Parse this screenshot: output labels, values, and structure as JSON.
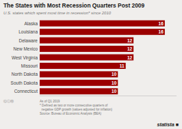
{
  "chart_data": {
    "type": "bar",
    "orientation": "horizontal",
    "title": "The States with Most Recession Quarters Post 2009",
    "subtitle": "U.S. states which spent most time in recession* since 2010",
    "categories": [
      "Connecticut",
      "South Dakota",
      "North Dakota",
      "Missouri",
      "West Virginia",
      "New Mexico",
      "Delaware",
      "Louisiana",
      "Alaska"
    ],
    "values": [
      10,
      10,
      10,
      11,
      12,
      12,
      12,
      16,
      16
    ],
    "color": "#9b0000",
    "xlim": [
      0,
      17.5
    ],
    "data_labels": true,
    "tick_labels": "y",
    "grid": false,
    "annotations": [
      "As of Q1 2019\n* Defined as two or more consecutive quarters of\n  negative GDP growth (values adjusted for inflation)\nSource: Bureau of Economic Analysis (BEA)",
      "ⓒⓘⓂ",
      "statista ■"
    ]
  }
}
